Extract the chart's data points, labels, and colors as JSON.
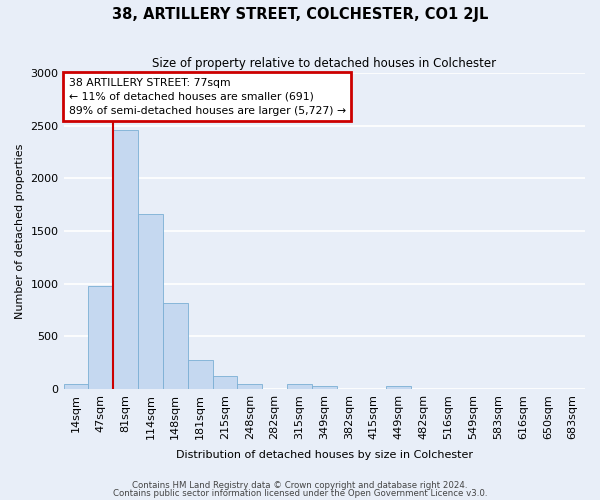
{
  "title": "38, ARTILLERY STREET, COLCHESTER, CO1 2JL",
  "subtitle": "Size of property relative to detached houses in Colchester",
  "xlabel": "Distribution of detached houses by size in Colchester",
  "ylabel": "Number of detached properties",
  "categories": [
    "14sqm",
    "47sqm",
    "81sqm",
    "114sqm",
    "148sqm",
    "181sqm",
    "215sqm",
    "248sqm",
    "282sqm",
    "315sqm",
    "349sqm",
    "382sqm",
    "415sqm",
    "449sqm",
    "482sqm",
    "516sqm",
    "549sqm",
    "583sqm",
    "616sqm",
    "650sqm",
    "683sqm"
  ],
  "values": [
    50,
    980,
    2460,
    1660,
    820,
    275,
    120,
    50,
    0,
    45,
    30,
    0,
    0,
    30,
    0,
    0,
    0,
    0,
    0,
    0,
    0
  ],
  "bar_color": "#c5d8f0",
  "bar_edge_color": "#7bafd4",
  "bg_color": "#e8eef8",
  "grid_color": "#ffffff",
  "annotation_text": "38 ARTILLERY STREET: 77sqm\n← 11% of detached houses are smaller (691)\n89% of semi-detached houses are larger (5,727) →",
  "annotation_box_edge": "#cc0000",
  "vline_color": "#cc0000",
  "ylim": [
    0,
    3000
  ],
  "footer1": "Contains HM Land Registry data © Crown copyright and database right 2024.",
  "footer2": "Contains public sector information licensed under the Open Government Licence v3.0."
}
